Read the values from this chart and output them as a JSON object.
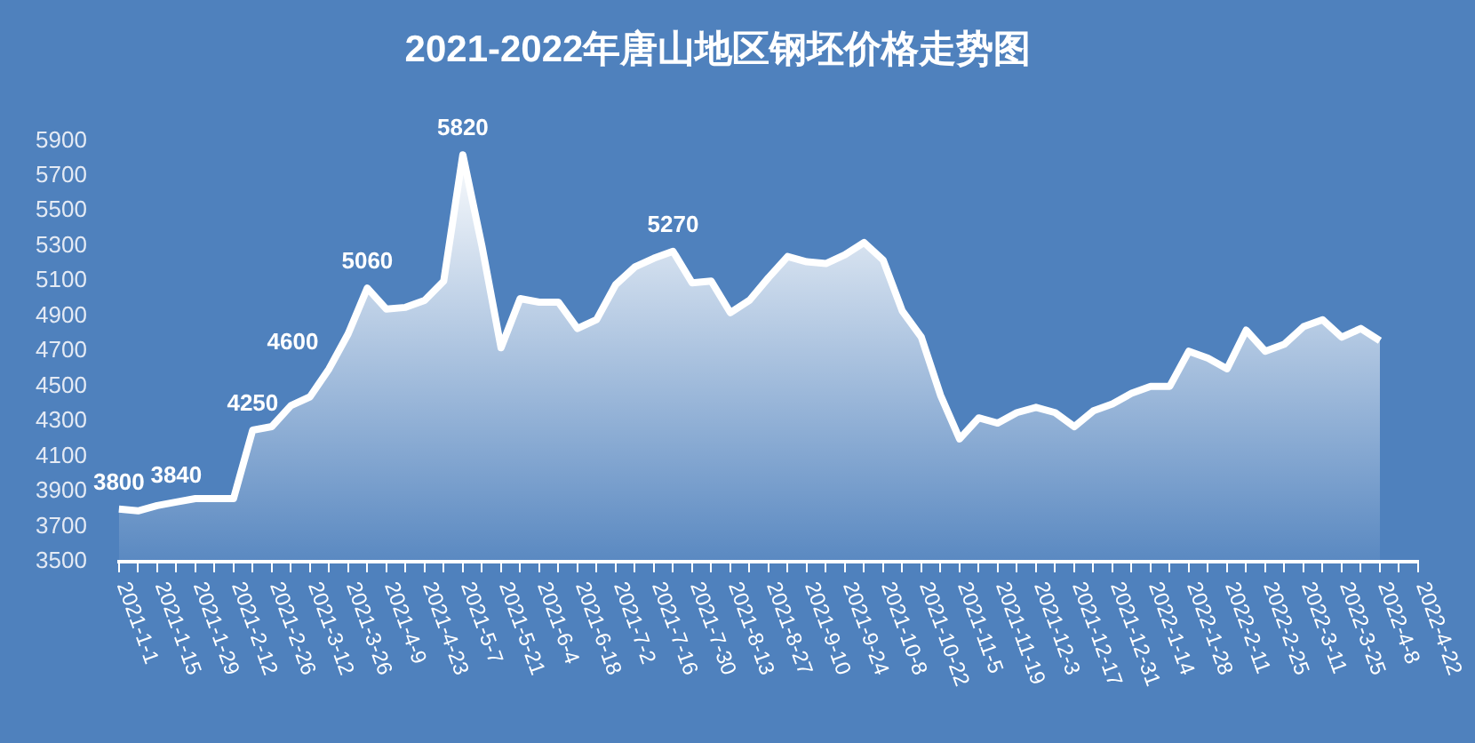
{
  "chart_data": {
    "type": "area",
    "title": "2021-2022年唐山地区钢坯价格走势图",
    "categories": [
      "2021-1-1",
      null,
      "2021-1-15",
      null,
      "2021-1-29",
      null,
      "2021-2-12",
      null,
      "2021-2-26",
      null,
      "2021-3-12",
      null,
      "2021-3-26",
      null,
      "2021-4-9",
      null,
      "2021-4-23",
      null,
      "2021-5-7",
      null,
      "2021-5-21",
      null,
      "2021-6-4",
      null,
      "2021-6-18",
      null,
      "2021-7-2",
      null,
      "2021-7-16",
      null,
      "2021-7-30",
      null,
      "2021-8-13",
      null,
      "2021-8-27",
      null,
      "2021-9-10",
      null,
      "2021-9-24",
      null,
      "2021-10-8",
      null,
      "2021-10-22",
      null,
      "2021-11-5",
      null,
      "2021-11-19",
      null,
      "2021-12-3",
      null,
      "2021-12-17",
      null,
      "2021-12-31",
      null,
      "2022-1-14",
      null,
      "2022-1-28",
      null,
      "2022-2-11",
      null,
      "2022-2-25",
      null,
      "2022-3-11",
      null,
      "2022-3-25",
      null,
      "2022-4-8",
      null,
      "2022-4-22"
    ],
    "series": [
      {
        "color": "#ffffff",
        "values": [
          3800,
          3790,
          3820,
          3840,
          3860,
          3860,
          3860,
          4250,
          4270,
          4390,
          4440,
          4600,
          4800,
          5060,
          4940,
          4950,
          4990,
          5100,
          5820,
          5300,
          4720,
          5000,
          4980,
          4980,
          4830,
          4880,
          5080,
          5180,
          5230,
          5270,
          5090,
          5100,
          4920,
          4990,
          5120,
          5240,
          5210,
          5200,
          5250,
          5320,
          5220,
          4930,
          4780,
          4450,
          4200,
          4320,
          4290,
          4350,
          4380,
          4350,
          4270,
          4360,
          4400,
          4460,
          4500,
          4500,
          4700,
          4660,
          4600,
          4820,
          4700,
          4740,
          4840,
          4880,
          4780,
          4830,
          4760,
          null,
          null
        ],
        "value_labels": [
          "3800",
          null,
          null,
          "3840",
          null,
          null,
          null,
          "4250",
          null,
          null,
          null,
          "4600",
          null,
          "5060",
          null,
          null,
          null,
          null,
          "5820",
          null,
          null,
          null,
          null,
          null,
          null,
          null,
          null,
          null,
          null,
          "5270",
          null,
          null,
          null,
          null,
          null,
          null,
          null,
          null,
          null,
          null,
          null,
          null,
          null,
          null,
          null,
          null,
          null,
          null,
          null,
          null,
          null,
          null,
          null,
          null,
          null,
          null,
          null,
          null,
          null,
          null,
          null,
          null,
          null,
          null,
          null,
          null,
          null,
          null,
          null
        ]
      }
    ],
    "ylim": [
      3500,
      5900
    ],
    "yticks": [
      3500,
      3700,
      3900,
      4100,
      4300,
      4500,
      4700,
      4900,
      5100,
      5300,
      5500,
      5700,
      5900
    ],
    "grid": false,
    "legend": false
  }
}
